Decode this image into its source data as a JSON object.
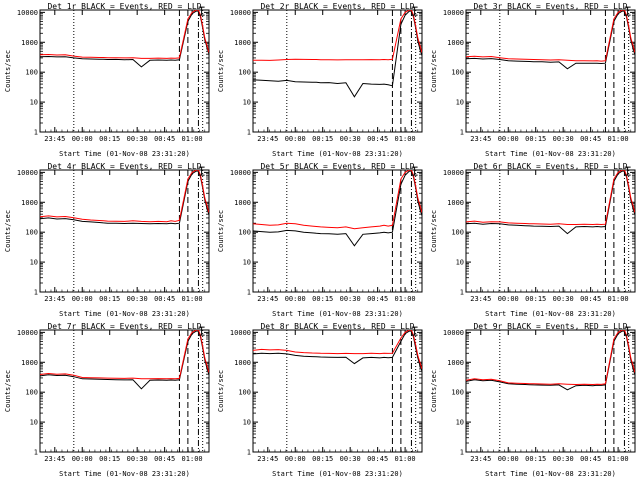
{
  "chart_data": {
    "type": "line",
    "layout_grid": "3x3",
    "y_scale": "log",
    "ylim": [
      1,
      12000
    ],
    "y_ticks": [
      1,
      10,
      100,
      1000,
      10000
    ],
    "y_tick_labels": [
      "1",
      "10",
      "100",
      "1000",
      "10000"
    ],
    "x_tick_labels": [
      "23:45",
      "00:00",
      "00:15",
      "00:30",
      "00:45",
      "01:00"
    ],
    "xlabel": "Start Time (01-Nov-08 23:31:20)",
    "ylabel": "Counts/sec",
    "series_colors": {
      "events": "#000000",
      "lld": "#ff0000"
    },
    "x": [
      0,
      4,
      8,
      12,
      16,
      20,
      24,
      28,
      30,
      32,
      36,
      40,
      44,
      48,
      52,
      56,
      60,
      62,
      64,
      66,
      70,
      72,
      74,
      75,
      76,
      77,
      78,
      79,
      80
    ],
    "panels": [
      {
        "title": "Det 1r BLACK = Events, RED = LLD",
        "events": [
          330,
          335,
          325,
          330,
          300,
          280,
          275,
          270,
          270,
          265,
          268,
          260,
          265,
          150,
          250,
          255,
          250,
          255,
          252,
          260,
          5000,
          9000,
          11000,
          11000,
          7000,
          3000,
          1200,
          700,
          400
        ],
        "lld": [
          380,
          390,
          375,
          385,
          345,
          320,
          315,
          310,
          310,
          305,
          305,
          300,
          305,
          290,
          290,
          295,
          290,
          295,
          292,
          300,
          6000,
          10000,
          12000,
          12000,
          8000,
          3500,
          1400,
          800,
          450
        ]
      },
      {
        "title": "Det 2r BLACK = Events, RED = LLD",
        "events": [
          55,
          54,
          52,
          50,
          53,
          48,
          47,
          46,
          46,
          44,
          45,
          42,
          44,
          15,
          42,
          40,
          39,
          40,
          38,
          35,
          4000,
          8000,
          11000,
          11000,
          7000,
          3000,
          1100,
          600,
          350
        ],
        "lld": [
          250,
          250,
          248,
          255,
          265,
          270,
          268,
          265,
          265,
          262,
          262,
          258,
          262,
          260,
          260,
          263,
          262,
          265,
          262,
          270,
          6000,
          10000,
          12000,
          12000,
          8000,
          3500,
          1400,
          800,
          450
        ]
      },
      {
        "title": "Det 3r BLACK = Events, RED = LLD",
        "events": [
          280,
          290,
          275,
          285,
          265,
          240,
          235,
          230,
          228,
          225,
          222,
          215,
          220,
          130,
          200,
          200,
          198,
          200,
          195,
          200,
          5000,
          9000,
          11000,
          11000,
          7000,
          3000,
          1200,
          650,
          380
        ],
        "lld": [
          330,
          340,
          325,
          335,
          305,
          280,
          275,
          270,
          268,
          265,
          262,
          255,
          260,
          250,
          240,
          240,
          238,
          240,
          235,
          240,
          6000,
          10000,
          12000,
          12000,
          8000,
          3500,
          1400,
          800,
          450
        ]
      },
      {
        "title": "Det 4r BLACK = Events, RED = LLD",
        "events": [
          280,
          300,
          275,
          285,
          260,
          230,
          220,
          210,
          205,
          200,
          198,
          195,
          200,
          195,
          190,
          195,
          190,
          200,
          190,
          200,
          5000,
          9000,
          11000,
          11000,
          7000,
          3000,
          1200,
          650,
          380
        ],
        "lld": [
          330,
          350,
          325,
          335,
          305,
          270,
          255,
          245,
          240,
          235,
          232,
          230,
          240,
          230,
          225,
          230,
          225,
          240,
          230,
          250,
          6000,
          10000,
          12000,
          12000,
          8000,
          3500,
          1400,
          800,
          450
        ]
      },
      {
        "title": "Det 5r BLACK = Events, RED = LLD",
        "events": [
          110,
          105,
          100,
          102,
          115,
          110,
          100,
          95,
          92,
          90,
          88,
          85,
          90,
          35,
          85,
          90,
          95,
          100,
          95,
          100,
          4000,
          8000,
          11000,
          11000,
          7000,
          3000,
          1100,
          600,
          350
        ],
        "lld": [
          190,
          180,
          170,
          175,
          200,
          190,
          170,
          160,
          155,
          150,
          145,
          140,
          150,
          130,
          140,
          150,
          160,
          170,
          160,
          170,
          6000,
          10000,
          12000,
          12000,
          8000,
          3500,
          1400,
          800,
          450
        ]
      },
      {
        "title": "Det 6r BLACK = Events, RED = LLD",
        "events": [
          190,
          200,
          185,
          195,
          190,
          175,
          170,
          165,
          162,
          160,
          158,
          155,
          160,
          90,
          150,
          155,
          150,
          155,
          150,
          155,
          5000,
          9000,
          11000,
          11000,
          7000,
          3000,
          1200,
          650,
          380
        ],
        "lld": [
          220,
          235,
          215,
          225,
          220,
          205,
          200,
          195,
          192,
          190,
          188,
          185,
          190,
          180,
          180,
          185,
          180,
          185,
          180,
          185,
          6000,
          10000,
          12000,
          12000,
          8000,
          3500,
          1400,
          800,
          450
        ]
      },
      {
        "title": "Det 7r BLACK = Events, RED = LLD",
        "events": [
          350,
          380,
          360,
          370,
          330,
          280,
          275,
          270,
          268,
          265,
          262,
          258,
          262,
          130,
          250,
          255,
          250,
          255,
          252,
          260,
          5000,
          9000,
          11000,
          11000,
          7000,
          3000,
          1200,
          650,
          380
        ],
        "lld": [
          390,
          420,
          400,
          410,
          370,
          310,
          305,
          300,
          298,
          295,
          292,
          290,
          295,
          280,
          280,
          285,
          280,
          285,
          282,
          290,
          6000,
          10000,
          12000,
          12000,
          8000,
          3500,
          1400,
          800,
          450
        ]
      },
      {
        "title": "Det 8r BLACK = Events, RED = LLD",
        "events": [
          1900,
          2000,
          1950,
          2000,
          1900,
          1700,
          1600,
          1550,
          1520,
          1500,
          1480,
          1450,
          1480,
          900,
          1400,
          1450,
          1400,
          1450,
          1420,
          1450,
          5000,
          9000,
          11000,
          11000,
          7000,
          3000,
          1400,
          800,
          500
        ],
        "lld": [
          2500,
          2700,
          2600,
          2650,
          2500,
          2200,
          2100,
          2050,
          2020,
          2000,
          1980,
          1950,
          1980,
          1950,
          1950,
          2000,
          1950,
          2000,
          1980,
          2000,
          6500,
          10000,
          12000,
          12000,
          8000,
          3800,
          1700,
          1000,
          600
        ]
      },
      {
        "title": "Det 9r BLACK = Events, RED = LLD",
        "events": [
          230,
          260,
          240,
          250,
          220,
          190,
          185,
          180,
          178,
          175,
          172,
          170,
          175,
          120,
          165,
          170,
          165,
          170,
          168,
          175,
          5000,
          9000,
          11000,
          11000,
          7000,
          3000,
          1200,
          650,
          380
        ],
        "lld": [
          250,
          280,
          260,
          270,
          240,
          205,
          200,
          195,
          192,
          190,
          188,
          185,
          190,
          185,
          180,
          185,
          180,
          185,
          182,
          190,
          6000,
          10000,
          12000,
          12000,
          8000,
          3500,
          1400,
          800,
          450
        ]
      }
    ]
  }
}
